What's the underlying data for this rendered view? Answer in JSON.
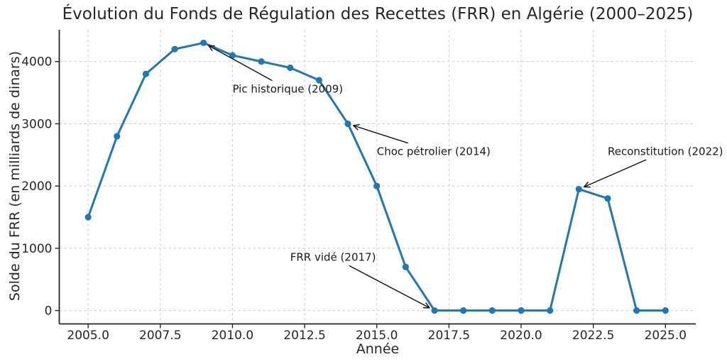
{
  "chart_data": {
    "type": "line",
    "title": "Évolution du Fonds de Régulation des Recettes (FRR) en Algérie (2000–2025)",
    "xlabel": "Année",
    "ylabel": "Solde du FRR (en milliards de dinars)",
    "x": [
      2005,
      2006,
      2007,
      2008,
      2009,
      2010,
      2011,
      2012,
      2013,
      2014,
      2015,
      2016,
      2017,
      2018,
      2019,
      2020,
      2021,
      2022,
      2023,
      2024,
      2025
    ],
    "values": [
      1500,
      2800,
      3800,
      4200,
      4300,
      4100,
      4000,
      3900,
      3700,
      3000,
      2000,
      700,
      0,
      0,
      0,
      0,
      0,
      1950,
      1800,
      0,
      0
    ],
    "xticks": [
      2005.0,
      2007.5,
      2010.0,
      2012.5,
      2015.0,
      2017.5,
      2020.0,
      2022.5,
      2025.0
    ],
    "xtick_labels": [
      "2005.0",
      "2007.5",
      "2010.0",
      "2012.5",
      "2015.0",
      "2017.5",
      "2020.0",
      "2022.5",
      "2025.0"
    ],
    "yticks": [
      0,
      1000,
      2000,
      3000,
      4000
    ],
    "ytick_labels": [
      "0",
      "1000",
      "2000",
      "3000",
      "4000"
    ],
    "xlim": [
      2004.0,
      2026.05
    ],
    "ylim": [
      -215,
      4510
    ],
    "grid": true,
    "legend": false,
    "annotations": [
      {
        "label": "Pic historique (2009)",
        "point": {
          "x": 2009,
          "y": 4300
        },
        "text": {
          "x": 2010,
          "y": 3500
        }
      },
      {
        "label": "Choc pétrolier (2014)",
        "point": {
          "x": 2014,
          "y": 3000
        },
        "text": {
          "x": 2015,
          "y": 2500
        }
      },
      {
        "label": "FRR vidé (2017)",
        "point": {
          "x": 2017,
          "y": 0
        },
        "text": {
          "x": 2012,
          "y": 800
        }
      },
      {
        "label": "Reconstitution (2022)",
        "point": {
          "x": 2022,
          "y": 1950
        },
        "text": {
          "x": 2023,
          "y": 2500
        }
      }
    ],
    "colors": {
      "line": "#1f77b4",
      "marker": "#1f77b4",
      "grid": "#cccccc",
      "spine": "#262626",
      "tick_text": "#262626",
      "title_text": "#262626",
      "annotation_text": "#1a1a1a",
      "arrow": "#111111",
      "background": "#ffffff"
    }
  }
}
